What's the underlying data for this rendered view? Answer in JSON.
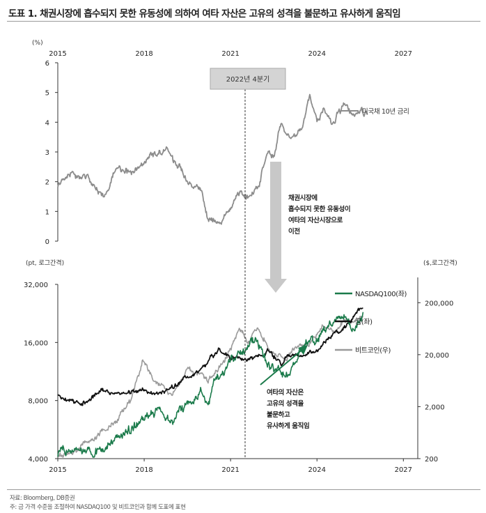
{
  "header": {
    "title": "도표 1. 채권시장에 흡수되지 못한 유동성에 의하여 여타 자산은 고유의 성격을 불문하고 유사하게 움직임"
  },
  "footer": {
    "source": "자료: Bloomberg, DB증권",
    "note": "주: 금 가격 수준을 조절하여 NASDAQ100 및 비트코인과 함께 도표에 표현"
  },
  "annotations": {
    "period_box": "2022년 4분기",
    "flow_text": [
      "채권시장에",
      "흡수되지 못한 유동성이",
      "여타의 자산시장으로",
      "이전"
    ],
    "assets_text": [
      "여타의 자산은",
      "고유의 성격을",
      "불문하고",
      "유사하게 움직임"
    ]
  },
  "colors": {
    "nasdaq": "#1a7a4a",
    "gold": "#111111",
    "bitcoin": "#9a9a9a",
    "treasury": "#8c8c8c",
    "arrow": "#c8c8c8",
    "box": "#d4d4d4"
  },
  "chart_data": [
    {
      "type": "line",
      "title": "",
      "ylabel": "(%)",
      "x_ticks": [
        "2015",
        "2018",
        "2021",
        "2024",
        "2027"
      ],
      "xlim": [
        2015,
        2027.5
      ],
      "y_ticks": [
        "0",
        "1",
        "2",
        "3",
        "4",
        "5",
        "6"
      ],
      "ylim": [
        0,
        6
      ],
      "series": [
        {
          "name": "미국채 10년 금리",
          "x": [
            2015.0,
            2015.25,
            2015.5,
            2015.75,
            2016.0,
            2016.25,
            2016.5,
            2016.75,
            2017.0,
            2017.25,
            2017.5,
            2017.75,
            2018.0,
            2018.25,
            2018.5,
            2018.75,
            2019.0,
            2019.25,
            2019.5,
            2019.75,
            2020.0,
            2020.2,
            2020.4,
            2020.6,
            2020.8,
            2021.0,
            2021.25,
            2021.5,
            2021.75,
            2022.0,
            2022.25,
            2022.5,
            2022.75,
            2023.0,
            2023.25,
            2023.5,
            2023.75,
            2024.0,
            2024.25,
            2024.5,
            2024.75,
            2025.0,
            2025.25,
            2025.5,
            2025.75
          ],
          "values": [
            1.9,
            2.1,
            2.3,
            2.1,
            2.2,
            1.8,
            1.5,
            1.7,
            2.45,
            2.35,
            2.3,
            2.4,
            2.7,
            2.9,
            2.9,
            3.15,
            2.7,
            2.5,
            2.0,
            1.8,
            1.7,
            0.7,
            0.65,
            0.55,
            0.8,
            1.1,
            1.7,
            1.4,
            1.55,
            1.9,
            2.9,
            2.9,
            4.0,
            3.5,
            3.6,
            3.9,
            4.9,
            4.0,
            4.5,
            3.9,
            4.3,
            4.6,
            4.2,
            4.4,
            4.25
          ]
        }
      ]
    },
    {
      "type": "line",
      "title": "",
      "ylabel": "(pt, 로그간격)",
      "ylabel_right": "($,로그간격)",
      "scale": "log",
      "x_ticks": [
        "2015",
        "2018",
        "2021",
        "2024",
        "2027"
      ],
      "xlim": [
        2015,
        2027.5
      ],
      "y_ticks": [
        "4,000",
        "8,000",
        "16,000",
        "32,000"
      ],
      "ylim": [
        4000,
        32000
      ],
      "y2_ticks": [
        "200",
        "2,000",
        "20,000",
        "200,000"
      ],
      "y2lim": [
        200,
        450000
      ],
      "series": [
        {
          "name": "NASDAQ100(좌)",
          "axis": "left",
          "x": [
            2015.0,
            2015.5,
            2016.0,
            2016.5,
            2017.0,
            2017.5,
            2018.0,
            2018.5,
            2018.95,
            2019.5,
            2020.0,
            2020.2,
            2020.5,
            2021.0,
            2021.5,
            2021.9,
            2022.3,
            2022.8,
            2023.0,
            2023.5,
            2024.0,
            2024.5,
            2025.0,
            2025.3,
            2025.6
          ],
          "values": [
            4200,
            4400,
            4300,
            4500,
            5000,
            5700,
            6500,
            7200,
            6300,
            7600,
            8800,
            7400,
            10500,
            12800,
            14800,
            16400,
            12200,
            11000,
            11000,
            15200,
            16800,
            19800,
            21500,
            18000,
            23000
          ]
        },
        {
          "name": "금(좌)",
          "axis": "left",
          "x": [
            2015.0,
            2015.5,
            2016.0,
            2016.5,
            2017.0,
            2017.5,
            2018.0,
            2018.5,
            2019.0,
            2019.5,
            2020.0,
            2020.6,
            2021.0,
            2021.5,
            2022.0,
            2022.3,
            2022.8,
            2023.0,
            2023.5,
            2024.0,
            2024.5,
            2025.0,
            2025.3,
            2025.6
          ],
          "values": [
            8600,
            7900,
            7800,
            9300,
            8500,
            8900,
            9200,
            8600,
            9300,
            10700,
            11600,
            14900,
            13200,
            13000,
            13600,
            14500,
            12300,
            13700,
            13800,
            14500,
            17500,
            19500,
            22000,
            24000
          ]
        },
        {
          "name": "비트코인(우)",
          "axis": "right",
          "x": [
            2015.0,
            2015.5,
            2016.0,
            2016.5,
            2017.0,
            2017.5,
            2017.95,
            2018.3,
            2018.95,
            2019.5,
            2020.0,
            2020.2,
            2020.8,
            2021.3,
            2021.6,
            2021.9,
            2022.5,
            2022.9,
            2023.3,
            2023.8,
            2024.2,
            2024.6,
            2024.95,
            2025.3,
            2025.6
          ],
          "values": [
            250,
            240,
            400,
            650,
            1000,
            2500,
            15000,
            7000,
            3500,
            10000,
            8000,
            5500,
            15000,
            60000,
            34000,
            65000,
            20000,
            16500,
            28000,
            35000,
            70000,
            58000,
            95000,
            85000,
            110000
          ]
        }
      ]
    }
  ]
}
